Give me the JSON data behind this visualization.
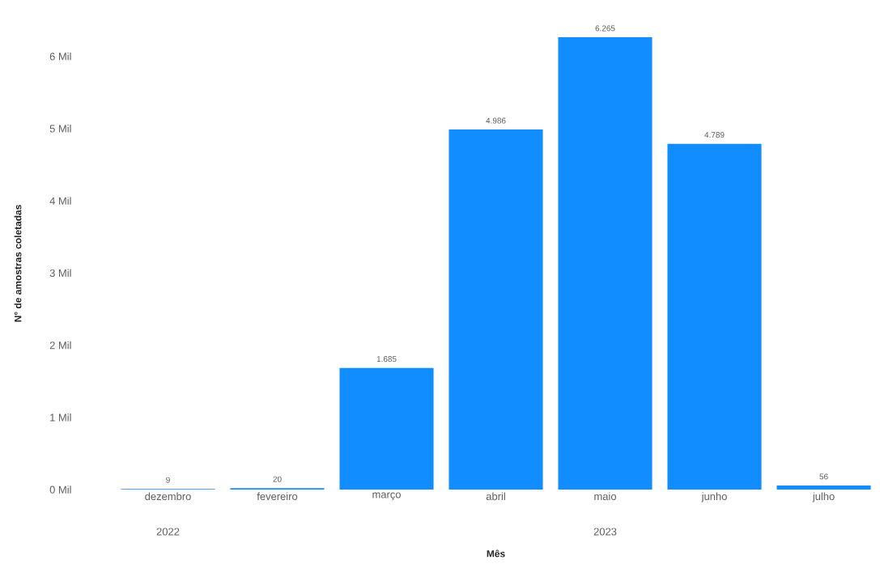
{
  "chart_data": {
    "type": "bar",
    "xlabel": "Mês",
    "ylabel": "N° de amostras coletadas",
    "categories": [
      "dezembro",
      "fevereiro",
      "março",
      "abril",
      "maio",
      "junho",
      "julho"
    ],
    "values": [
      0.009,
      0.02,
      1.685,
      4.986,
      6.265,
      4.789,
      0.056
    ],
    "value_labels": [
      null,
      null,
      "1.685",
      "4.986",
      "6.265",
      "4.789",
      null
    ],
    "color": "#118dff",
    "ylim": [
      0,
      6.265
    ],
    "yticks": [
      {
        "value": 0,
        "label": "0 Mil"
      },
      {
        "value": 1,
        "label": "1 Mil"
      },
      {
        "value": 2,
        "label": "2 Mil"
      },
      {
        "value": 3,
        "label": "3 Mil"
      },
      {
        "value": 4,
        "label": "4 Mil"
      },
      {
        "value": 5,
        "label": "5 Mil"
      },
      {
        "value": 6,
        "label": "6 Mil"
      }
    ],
    "annotations": [
      "2022",
      "2023",
      {
        "text": "9",
        "x": "dezembro",
        "y": 0.009
      },
      {
        "text": "20",
        "x": "fevereiro",
        "y": 0.02
      },
      {
        "text": "56",
        "x": "julho",
        "y": 0.056
      }
    ],
    "grid": false
  }
}
